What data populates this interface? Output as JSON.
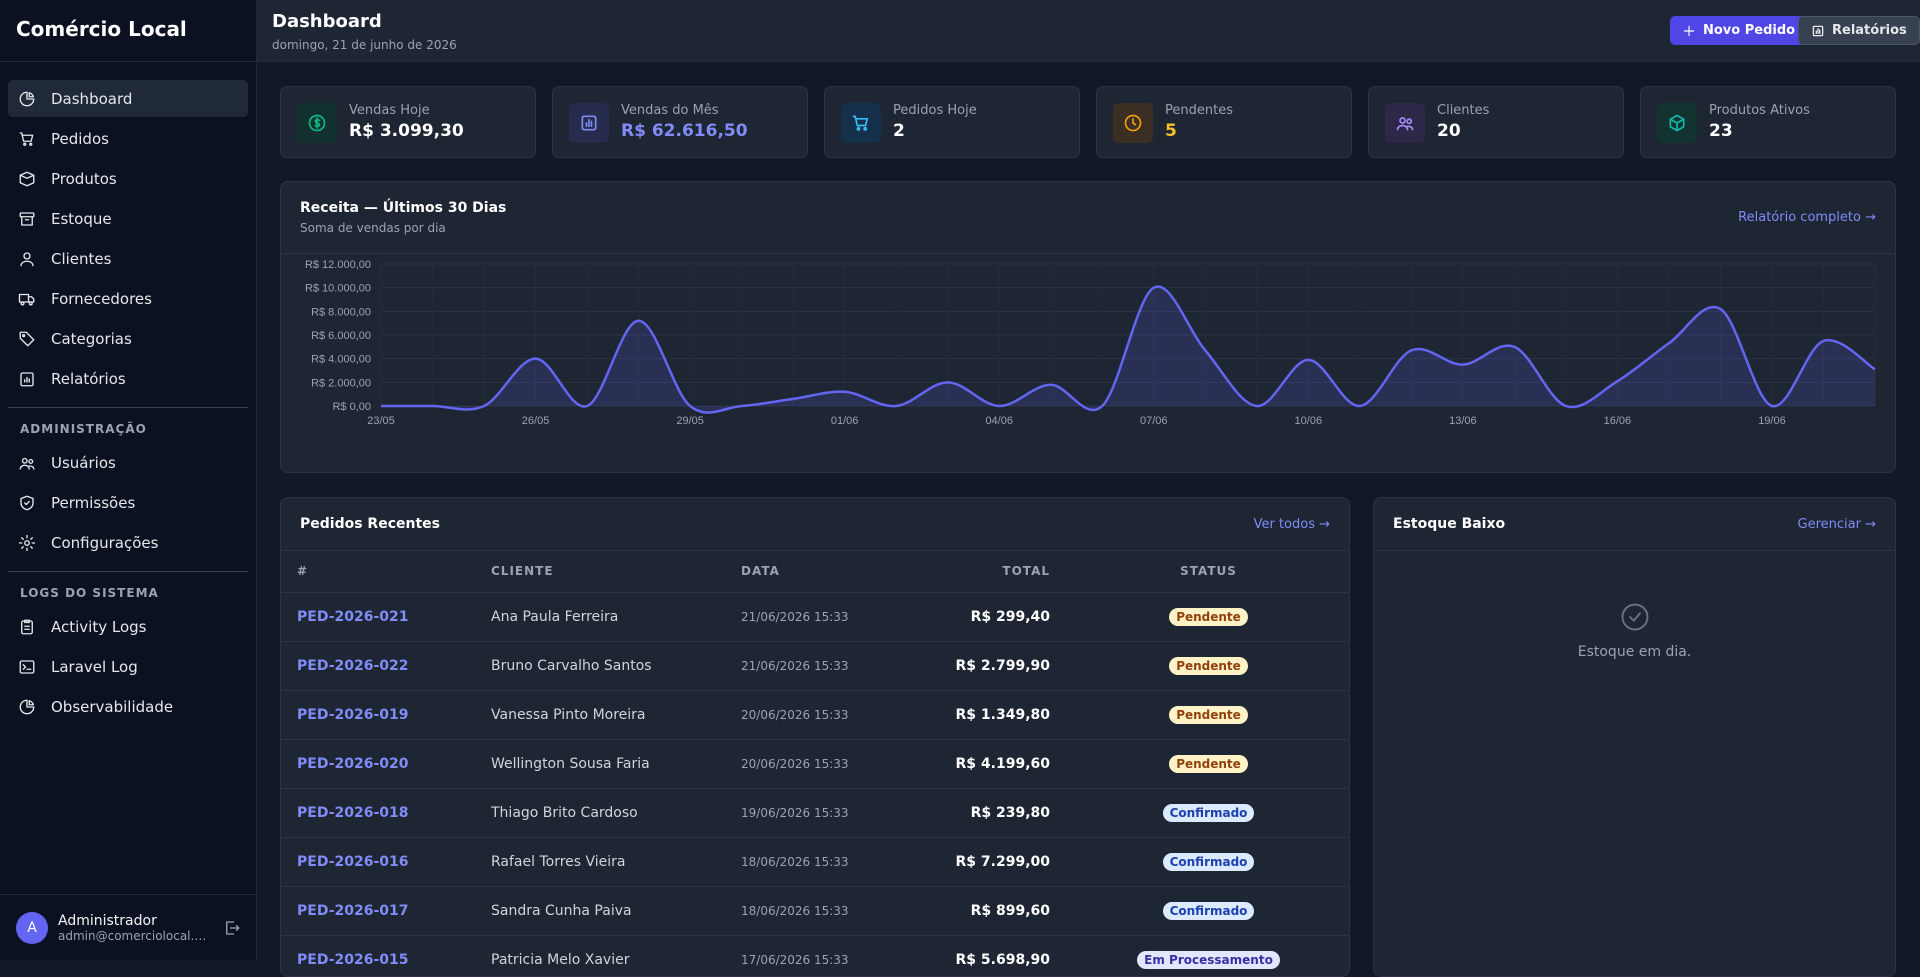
{
  "app": {
    "title": "Comércio Local"
  },
  "sidebar": {
    "items": [
      {
        "label": "Dashboard",
        "icon": "pie-chart-icon"
      },
      {
        "label": "Pedidos",
        "icon": "cart-icon"
      },
      {
        "label": "Produtos",
        "icon": "tag-icon"
      },
      {
        "label": "Estoque",
        "icon": "archive-icon"
      },
      {
        "label": "Clientes",
        "icon": "users-icon"
      },
      {
        "label": "Fornecedores",
        "icon": "truck-icon"
      },
      {
        "label": "Categorias",
        "icon": "label-icon"
      },
      {
        "label": "Relatórios",
        "icon": "clipboard-icon"
      }
    ],
    "admin_heading": "ADMINISTRAÇÃO",
    "admin_items": [
      {
        "label": "Usuários",
        "icon": "user-group-icon"
      },
      {
        "label": "Permissões",
        "icon": "shield-icon"
      },
      {
        "label": "Configurações",
        "icon": "gear-icon"
      }
    ],
    "logs_heading": "LOGS DO SISTEMA",
    "logs_items": [
      {
        "label": "Activity Logs",
        "icon": "clipboard-list-icon"
      },
      {
        "label": "Laravel Log",
        "icon": "terminal-icon"
      },
      {
        "label": "Observabilidade",
        "icon": "pie-chart-icon"
      }
    ]
  },
  "user": {
    "initial": "A",
    "name": "Administrador",
    "email": "admin@comerciolocal.com.br"
  },
  "header": {
    "title": "Dashboard",
    "date": "domingo, 21 de junho de 2026",
    "new_order": "Novo Pedido",
    "reports": "Relatórios"
  },
  "stats": [
    {
      "label": "Vendas Hoje",
      "value": "R$ 3.099,30",
      "color": "#ffffff",
      "icon": "dollar-icon",
      "accent": "#10b981",
      "bg": "#11302e"
    },
    {
      "label": "Vendas do Mês",
      "value": "R$ 62.616,50",
      "color": "#818cf8",
      "icon": "bar-chart-icon",
      "accent": "#818cf8",
      "bg": "#272b4d"
    },
    {
      "label": "Pedidos Hoje",
      "value": "2",
      "color": "#ffffff",
      "icon": "cart-icon",
      "accent": "#38bdf8",
      "bg": "#15304a"
    },
    {
      "label": "Pendentes",
      "value": "5",
      "color": "#fbbf24",
      "icon": "clock-icon",
      "accent": "#f59e0b",
      "bg": "#3a2f22"
    },
    {
      "label": "Clientes",
      "value": "20",
      "color": "#ffffff",
      "icon": "users-icon",
      "accent": "#a78bfa",
      "bg": "#2e2848"
    },
    {
      "label": "Produtos Ativos",
      "value": "23",
      "color": "#ffffff",
      "icon": "cube-icon",
      "accent": "#14b8a6",
      "bg": "#133330"
    }
  ],
  "revenue": {
    "title": "Receita — Últimos 30 Dias",
    "subtitle": "Soma de vendas por dia",
    "link": "Relatório completo →"
  },
  "chart_data": {
    "type": "area",
    "x": [
      "23/05",
      "24/05",
      "25/05",
      "26/05",
      "27/05",
      "28/05",
      "29/05",
      "30/05",
      "31/05",
      "01/06",
      "02/06",
      "03/06",
      "04/06",
      "05/06",
      "06/06",
      "07/06",
      "08/06",
      "09/06",
      "10/06",
      "11/06",
      "12/06",
      "13/06",
      "14/06",
      "15/06",
      "16/06",
      "17/06",
      "18/06",
      "19/06",
      "20/06",
      "21/06"
    ],
    "values": [
      0,
      0,
      0,
      4000,
      0,
      7200,
      0,
      0,
      600,
      1200,
      0,
      2000,
      0,
      1800,
      0,
      10000,
      4700,
      0,
      3900,
      0,
      4700,
      3500,
      5000,
      0,
      2100,
      5300,
      8200,
      0,
      5500,
      3099.3
    ],
    "x_ticks": [
      "23/05",
      "26/05",
      "29/05",
      "01/06",
      "04/06",
      "07/06",
      "10/06",
      "13/06",
      "16/06",
      "19/06"
    ],
    "y_ticks": [
      "R$ 0,00",
      "R$ 2.000,00",
      "R$ 4.000,00",
      "R$ 6.000,00",
      "R$ 8.000,00",
      "R$ 10.000,00",
      "R$ 12.000,00"
    ],
    "ylim": [
      0,
      12000
    ],
    "grid": true,
    "line_color": "#6366f1"
  },
  "orders": {
    "title": "Pedidos Recentes",
    "link": "Ver todos →",
    "columns": [
      "#",
      "CLIENTE",
      "DATA",
      "TOTAL",
      "STATUS"
    ],
    "rows": [
      {
        "id": "PED-2026-021",
        "client": "Ana Paula Ferreira",
        "date": "21/06/2026 15:33",
        "total": "R$ 299,40",
        "status": "Pendente",
        "kind": "pend"
      },
      {
        "id": "PED-2026-022",
        "client": "Bruno Carvalho Santos",
        "date": "21/06/2026 15:33",
        "total": "R$ 2.799,90",
        "status": "Pendente",
        "kind": "pend"
      },
      {
        "id": "PED-2026-019",
        "client": "Vanessa Pinto Moreira",
        "date": "20/06/2026 15:33",
        "total": "R$ 1.349,80",
        "status": "Pendente",
        "kind": "pend"
      },
      {
        "id": "PED-2026-020",
        "client": "Wellington Sousa Faria",
        "date": "20/06/2026 15:33",
        "total": "R$ 4.199,60",
        "status": "Pendente",
        "kind": "pend"
      },
      {
        "id": "PED-2026-018",
        "client": "Thiago Brito Cardoso",
        "date": "19/06/2026 15:33",
        "total": "R$ 239,80",
        "status": "Confirmado",
        "kind": "conf"
      },
      {
        "id": "PED-2026-016",
        "client": "Rafael Torres Vieira",
        "date": "18/06/2026 15:33",
        "total": "R$ 7.299,00",
        "status": "Confirmado",
        "kind": "conf"
      },
      {
        "id": "PED-2026-017",
        "client": "Sandra Cunha Paiva",
        "date": "18/06/2026 15:33",
        "total": "R$ 899,60",
        "status": "Confirmado",
        "kind": "conf"
      },
      {
        "id": "PED-2026-015",
        "client": "Patricia Melo Xavier",
        "date": "17/06/2026 15:33",
        "total": "R$ 5.698,90",
        "status": "Em Processamento",
        "kind": "proc"
      }
    ]
  },
  "stock": {
    "title": "Estoque Baixo",
    "link": "Gerenciar →",
    "empty": "Estoque em dia."
  }
}
